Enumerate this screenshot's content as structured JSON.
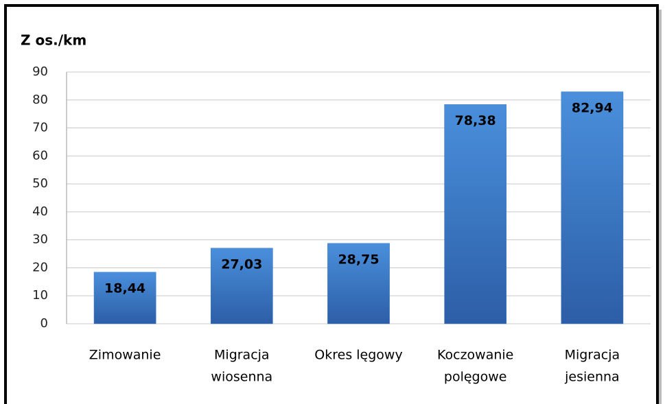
{
  "chart_data": {
    "type": "bar",
    "title": "Z os./km",
    "categories": [
      [
        "Zimowanie"
      ],
      [
        "Migracja",
        "wiosenna"
      ],
      [
        "Okres lęgowy"
      ],
      [
        "Koczowanie",
        "polęgowe"
      ],
      [
        "Migracja",
        "jesienna"
      ]
    ],
    "values": [
      18.44,
      27.03,
      28.75,
      78.38,
      82.94
    ],
    "value_labels": [
      "18,44",
      "27,03",
      "28,75",
      "78,38",
      "82,94"
    ],
    "color": "#3a78c8",
    "ylim": [
      0,
      90
    ],
    "yticks": [
      0,
      10,
      20,
      30,
      40,
      50,
      60,
      70,
      80,
      90
    ],
    "grid": true
  }
}
